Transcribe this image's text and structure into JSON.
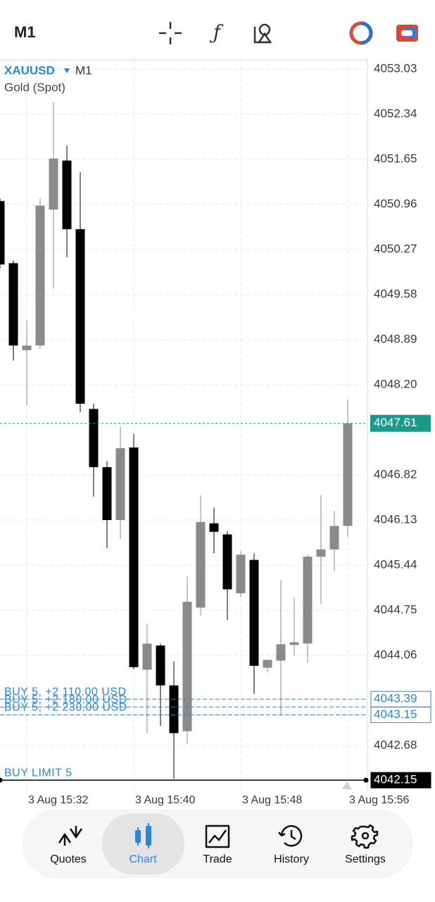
{
  "top_bar": {
    "timeframe": "M1"
  },
  "chart_data": {
    "type": "candlestick",
    "symbol": "XAUUSD",
    "timeframe": "M1",
    "subtitle": "Gold (Spot)",
    "categories": [
      null,
      null,
      "3 Aug 15:32",
      null,
      null,
      null,
      null,
      null,
      null,
      null,
      "3 Aug 15:40",
      null,
      null,
      null,
      null,
      null,
      null,
      null,
      "3 Aug 15:48",
      null,
      null,
      null,
      null,
      null,
      null,
      null,
      "3 Aug 15:56"
    ],
    "open": [
      4051.01,
      4050.06,
      4048.73,
      4048.8,
      4050.88,
      4051.63,
      4050.58,
      4047.83,
      4046.94,
      4046.13,
      4047.24,
      4043.84,
      4044.21,
      4043.6,
      4042.9,
      4044.79,
      4046.08,
      4045.91,
      4045.01,
      4045.52,
      4043.87,
      4043.98,
      4044.22,
      4044.24,
      4045.57,
      4045.68,
      4046.04
    ],
    "high": [
      4051.05,
      4050.1,
      4049.18,
      4051.05,
      4052.52,
      4051.86,
      4051.45,
      4047.91,
      4047.03,
      4047.56,
      4047.45,
      4044.54,
      4044.24,
      4043.97,
      4045.27,
      4046.51,
      4046.32,
      4045.96,
      4045.65,
      4045.62,
      4044.0,
      4045.21,
      4044.94,
      4045.6,
      4046.51,
      4046.27,
      4047.97
    ],
    "low": [
      4049.98,
      4048.57,
      4047.89,
      4048.75,
      4049.67,
      4050.15,
      4047.78,
      4046.49,
      4045.7,
      4045.84,
      4043.85,
      4042.87,
      4042.98,
      4042.17,
      4042.71,
      4044.67,
      4045.62,
      4044.6,
      4044.95,
      4043.47,
      4043.8,
      4043.14,
      4044.06,
      4043.95,
      4044.84,
      4045.35,
      4045.87
    ],
    "close": [
      4050.04,
      4048.8,
      4048.8,
      4050.94,
      4051.66,
      4050.58,
      4047.91,
      4046.94,
      4046.13,
      4047.23,
      4043.88,
      4044.24,
      4043.6,
      4042.87,
      4044.88,
      4046.1,
      4045.95,
      4045.07,
      4045.6,
      4043.9,
      4043.99,
      4044.23,
      4044.26,
      4045.57,
      4045.68,
      4046.04,
      4047.61
    ],
    "up_color": "#8a8a8a",
    "down_color": "#000000",
    "ylim": [
      4041.99,
      4053.17
    ],
    "yticks": [
      4053.03,
      4052.34,
      4051.65,
      4050.96,
      4050.27,
      4049.58,
      4048.89,
      {
        "value": 4048.2,
        "label": "4048.20"
      },
      4046.82,
      4046.13,
      4045.44,
      4044.75,
      4044.06,
      4042.68
    ],
    "grid": true,
    "current_price": 4047.61,
    "current_price_color": "#1a9a8a",
    "orders": [
      {
        "label": "BUY 5, +2 180.00 USD",
        "price": 4043.27,
        "kind": "position"
      },
      {
        "label": "BUY 5, +2 230.00 USD",
        "price": 4043.15,
        "kind": "position"
      },
      {
        "label": "BUY 5, +2 110.00 USD",
        "price": 4043.39,
        "kind": "position"
      },
      {
        "label": "BUY LIMIT 5",
        "price": 4042.15,
        "kind": "limit"
      }
    ],
    "order_color": "#2a86d9"
  },
  "nav": {
    "items": [
      "Quotes",
      "Chart",
      "Trade",
      "History",
      "Settings"
    ],
    "active_index": 1
  }
}
